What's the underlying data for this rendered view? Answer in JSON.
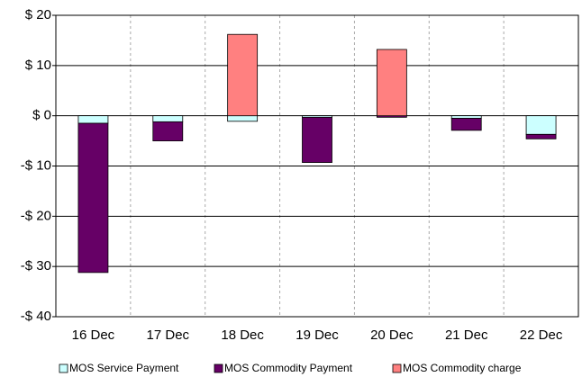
{
  "chart_data": {
    "type": "stacked_bar",
    "categories": [
      "16 Dec",
      "17 Dec",
      "18 Dec",
      "19 Dec",
      "20 Dec",
      "21 Dec",
      "22 Dec"
    ],
    "series": [
      {
        "name": "MOS Service Payment",
        "color": "#ccffff",
        "values": [
          -1.5,
          -1.2,
          -1.1,
          -0.3,
          0,
          -0.5,
          -3.7
        ]
      },
      {
        "name": "MOS Commodity Payment",
        "color": "#660066",
        "values": [
          -29.7,
          -3.8,
          0,
          -9.0,
          -0.3,
          -2.4,
          -0.9
        ]
      },
      {
        "name": "MOS Commodity charge",
        "color": "#ff8080",
        "values": [
          0,
          0,
          16.2,
          0,
          13.2,
          0,
          0
        ]
      }
    ],
    "ylim": [
      -40,
      20
    ],
    "yticks": [
      {
        "value": -40,
        "label": "-$ 40"
      },
      {
        "value": -30,
        "label": "-$ 30"
      },
      {
        "value": -20,
        "label": "-$ 20"
      },
      {
        "value": -10,
        "label": "-$ 10"
      },
      {
        "value": 0,
        "label": "$ 0"
      },
      {
        "value": 10,
        "label": "$ 10"
      },
      {
        "value": 20,
        "label": "$ 20"
      }
    ],
    "grid": true,
    "legend": "bottom"
  }
}
